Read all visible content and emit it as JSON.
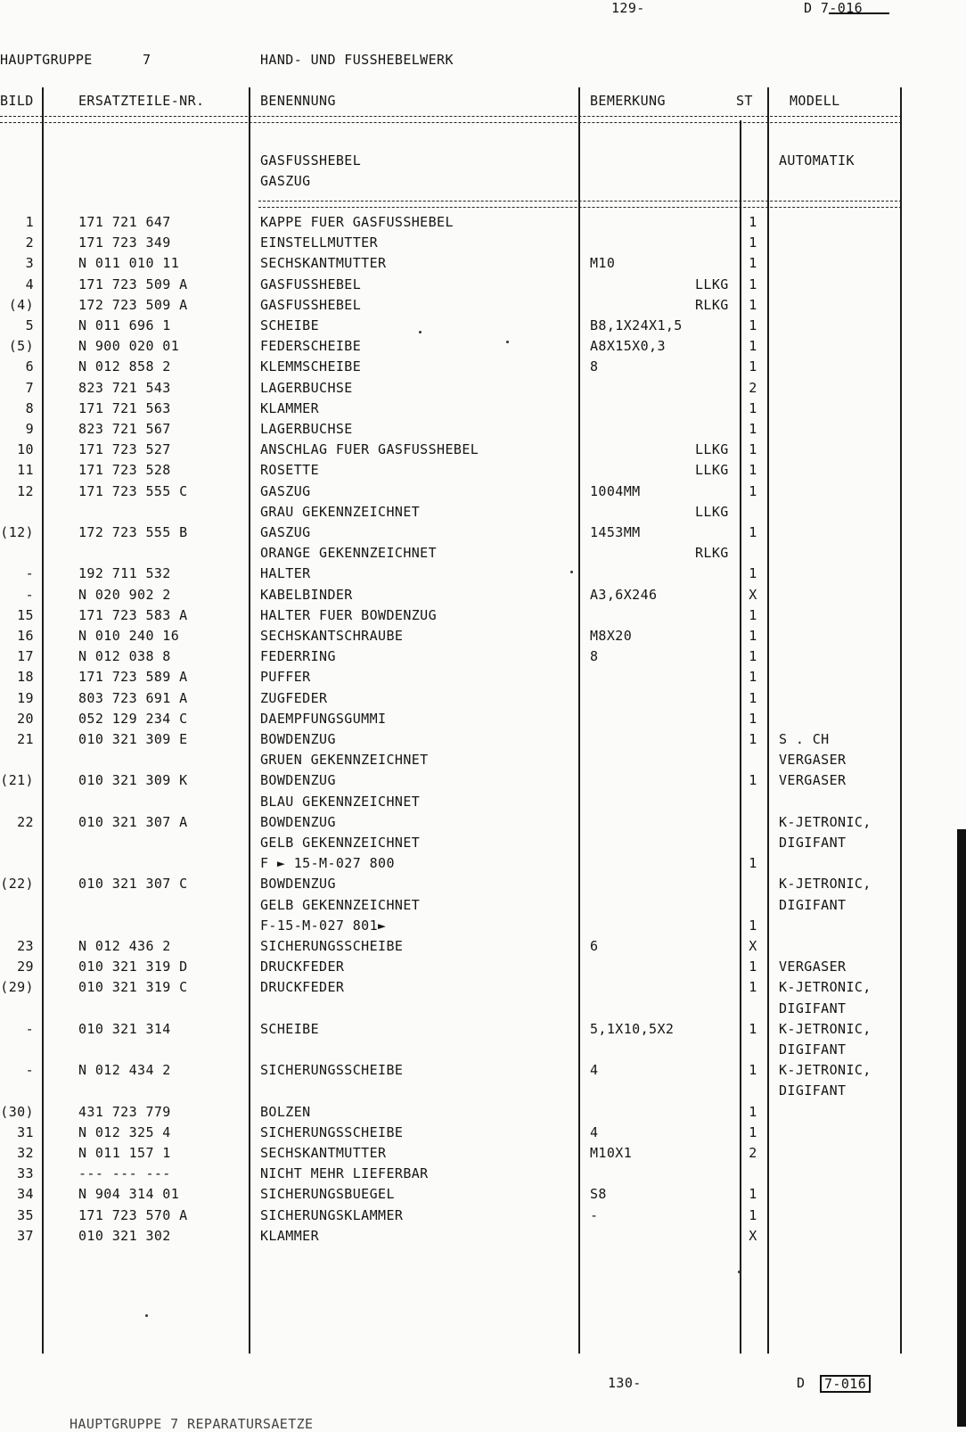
{
  "page": {
    "top_number": "129-",
    "top_ref": "D 7-016",
    "header_group_label": "HAUPTGRUPPE",
    "header_group_no": "7",
    "header_group_title": "HAND- UND FUSSHEBELWERK",
    "footer_page": "130-",
    "footer_prefix": "D",
    "footer_ref": "7-016",
    "next_section": "HAUPTGRUPPE 7    REPARATURSAETZE"
  },
  "columns": {
    "bild": "BILD",
    "part_no": "ERSATZTEILE-NR.",
    "name": "BENENNUNG",
    "remark": "BEMERKUNG",
    "qty": "ST",
    "model": "MODELL"
  },
  "intro": {
    "line1": "GASFUSSHEBEL",
    "line2": "GASZUG",
    "model": "AUTOMATIK"
  },
  "rows": [
    {
      "bild": "1",
      "part": "171 721 647",
      "name": "KAPPE FUER GASFUSSHEBEL",
      "remark": "",
      "lhd": "",
      "qty": "1",
      "model": ""
    },
    {
      "bild": "2",
      "part": "171 723 349",
      "name": "EINSTELLMUTTER",
      "remark": "",
      "lhd": "",
      "qty": "1",
      "model": ""
    },
    {
      "bild": "3",
      "part": "N   011 010 11",
      "name": "SECHSKANTMUTTER",
      "remark": "M10",
      "lhd": "",
      "qty": "1",
      "model": ""
    },
    {
      "bild": "4",
      "part": "171 723 509 A",
      "name": "GASFUSSHEBEL",
      "remark": "",
      "lhd": "LLKG",
      "qty": "1",
      "model": ""
    },
    {
      "bild": "(4)",
      "part": "172 723 509 A",
      "name": "GASFUSSHEBEL",
      "remark": "",
      "lhd": "RLKG",
      "qty": "1",
      "model": ""
    },
    {
      "bild": "5",
      "part": "N   011 696 1",
      "name": "SCHEIBE",
      "remark": "B8,1X24X1,5",
      "lhd": "",
      "qty": "1",
      "model": ""
    },
    {
      "bild": "(5)",
      "part": "N   900 020 01",
      "name": "FEDERSCHEIBE",
      "remark": "A8X15X0,3",
      "lhd": "",
      "qty": "1",
      "model": ""
    },
    {
      "bild": "6",
      "part": "N   012 858 2",
      "name": "KLEMMSCHEIBE",
      "remark": "8",
      "lhd": "",
      "qty": "1",
      "model": ""
    },
    {
      "bild": "7",
      "part": "823 721 543",
      "name": "LAGERBUCHSE",
      "remark": "",
      "lhd": "",
      "qty": "2",
      "model": ""
    },
    {
      "bild": "8",
      "part": "171 721 563",
      "name": "KLAMMER",
      "remark": "",
      "lhd": "",
      "qty": "1",
      "model": ""
    },
    {
      "bild": "9",
      "part": "823 721 567",
      "name": "LAGERBUCHSE",
      "remark": "",
      "lhd": "",
      "qty": "1",
      "model": ""
    },
    {
      "bild": "10",
      "part": "171 723 527",
      "name": "ANSCHLAG FUER GASFUSSHEBEL",
      "remark": "",
      "lhd": "LLKG",
      "qty": "1",
      "model": ""
    },
    {
      "bild": "11",
      "part": "171 723 528",
      "name": "ROSETTE",
      "remark": "",
      "lhd": "LLKG",
      "qty": "1",
      "model": ""
    },
    {
      "bild": "12",
      "part": "171 723 555 C",
      "name": "GASZUG",
      "remark": "1004MM",
      "lhd": "",
      "qty": "1",
      "model": ""
    },
    {
      "bild": "",
      "part": "",
      "name": "GRAU GEKENNZEICHNET",
      "remark": "",
      "lhd": "LLKG",
      "qty": "",
      "model": ""
    },
    {
      "bild": "(12)",
      "part": "172 723 555 B",
      "name": "GASZUG",
      "remark": "1453MM",
      "lhd": "",
      "qty": "1",
      "model": ""
    },
    {
      "bild": "",
      "part": "",
      "name": "ORANGE GEKENNZEICHNET",
      "remark": "",
      "lhd": "RLKG",
      "qty": "",
      "model": ""
    },
    {
      "bild": "-",
      "part": "192 711 532",
      "name": "HALTER",
      "remark": "",
      "lhd": "",
      "qty": "1",
      "model": ""
    },
    {
      "bild": "-",
      "part": "N   020 902 2",
      "name": "KABELBINDER",
      "remark": "A3,6X246",
      "lhd": "",
      "qty": "X",
      "model": ""
    },
    {
      "bild": "15",
      "part": "171 723 583 A",
      "name": "HALTER FUER BOWDENZUG",
      "remark": "",
      "lhd": "",
      "qty": "1",
      "model": ""
    },
    {
      "bild": "16",
      "part": "N   010 240 16",
      "name": "SECHSKANTSCHRAUBE",
      "remark": "M8X20",
      "lhd": "",
      "qty": "1",
      "model": ""
    },
    {
      "bild": "17",
      "part": "N   012 038 8",
      "name": "FEDERRING",
      "remark": "8",
      "lhd": "",
      "qty": "1",
      "model": ""
    },
    {
      "bild": "18",
      "part": "171 723 589 A",
      "name": "PUFFER",
      "remark": "",
      "lhd": "",
      "qty": "1",
      "model": ""
    },
    {
      "bild": "19",
      "part": "803 723 691 A",
      "name": "ZUGFEDER",
      "remark": "",
      "lhd": "",
      "qty": "1",
      "model": ""
    },
    {
      "bild": "20",
      "part": "052 129 234 C",
      "name": "DAEMPFUNGSGUMMI",
      "remark": "",
      "lhd": "",
      "qty": "1",
      "model": ""
    },
    {
      "bild": "21",
      "part": "010 321 309 E",
      "name": "BOWDENZUG",
      "remark": "",
      "lhd": "",
      "qty": "1",
      "model": "S . CH"
    },
    {
      "bild": "",
      "part": "",
      "name": "GRUEN GEKENNZEICHNET",
      "remark": "",
      "lhd": "",
      "qty": "",
      "model": "VERGASER"
    },
    {
      "bild": "(21)",
      "part": "010 321 309 K",
      "name": "BOWDENZUG",
      "remark": "",
      "lhd": "",
      "qty": "1",
      "model": "VERGASER"
    },
    {
      "bild": "",
      "part": "",
      "name": "BLAU GEKENNZEICHNET",
      "remark": "",
      "lhd": "",
      "qty": "",
      "model": ""
    },
    {
      "bild": "22",
      "part": "010 321 307 A",
      "name": "BOWDENZUG",
      "remark": "",
      "lhd": "",
      "qty": "",
      "model": "K-JETRONIC,"
    },
    {
      "bild": "",
      "part": "",
      "name": "GELB GEKENNZEICHNET",
      "remark": "",
      "lhd": "",
      "qty": "",
      "model": "DIGIFANT"
    },
    {
      "bild": "",
      "part": "",
      "name": "F           ► 15-M-027 800",
      "remark": "",
      "lhd": "",
      "qty": "1",
      "model": ""
    },
    {
      "bild": "(22)",
      "part": "010 321 307 C",
      "name": "BOWDENZUG",
      "remark": "",
      "lhd": "",
      "qty": "",
      "model": "K-JETRONIC,"
    },
    {
      "bild": "",
      "part": "",
      "name": "GELB GEKENNZEICHNET",
      "remark": "",
      "lhd": "",
      "qty": "",
      "model": "DIGIFANT"
    },
    {
      "bild": "",
      "part": "",
      "name": "F-15-M-027 801►",
      "remark": "",
      "lhd": "",
      "qty": "1",
      "model": ""
    },
    {
      "bild": "23",
      "part": "N   012 436 2",
      "name": "SICHERUNGSSCHEIBE",
      "remark": "6",
      "lhd": "",
      "qty": "X",
      "model": ""
    },
    {
      "bild": "29",
      "part": "010 321 319 D",
      "name": "DRUCKFEDER",
      "remark": "",
      "lhd": "",
      "qty": "1",
      "model": "VERGASER"
    },
    {
      "bild": "(29)",
      "part": "010 321 319 C",
      "name": "DRUCKFEDER",
      "remark": "",
      "lhd": "",
      "qty": "1",
      "model": "K-JETRONIC,"
    },
    {
      "bild": "",
      "part": "",
      "name": "",
      "remark": "",
      "lhd": "",
      "qty": "",
      "model": "DIGIFANT"
    },
    {
      "bild": "-",
      "part": "010 321 314",
      "name": "SCHEIBE",
      "remark": "5,1X10,5X2",
      "lhd": "",
      "qty": "1",
      "model": "K-JETRONIC,"
    },
    {
      "bild": "",
      "part": "",
      "name": "",
      "remark": "",
      "lhd": "",
      "qty": "",
      "model": "DIGIFANT"
    },
    {
      "bild": "-",
      "part": "N   012 434 2",
      "name": "SICHERUNGSSCHEIBE",
      "remark": "4",
      "lhd": "",
      "qty": "1",
      "model": "K-JETRONIC,"
    },
    {
      "bild": "",
      "part": "",
      "name": "",
      "remark": "",
      "lhd": "",
      "qty": "",
      "model": "DIGIFANT"
    },
    {
      "bild": "(30)",
      "part": "431 723 779",
      "name": "BOLZEN",
      "remark": "",
      "lhd": "",
      "qty": "1",
      "model": ""
    },
    {
      "bild": "31",
      "part": "N   012 325 4",
      "name": "SICHERUNGSSCHEIBE",
      "remark": "4",
      "lhd": "",
      "qty": "1",
      "model": ""
    },
    {
      "bild": "32",
      "part": "N   011 157 1",
      "name": "SECHSKANTMUTTER",
      "remark": "M10X1",
      "lhd": "",
      "qty": "2",
      "model": ""
    },
    {
      "bild": "33",
      "part": "--- --- ---",
      "name": "NICHT MEHR LIEFERBAR",
      "remark": "",
      "lhd": "",
      "qty": "",
      "model": ""
    },
    {
      "bild": "34",
      "part": "N   904 314 01",
      "name": "SICHERUNGSBUEGEL",
      "remark": "S8",
      "lhd": "",
      "qty": "1",
      "model": ""
    },
    {
      "bild": "35",
      "part": "171 723 570 A",
      "name": "SICHERUNGSKLAMMER",
      "remark": "-",
      "lhd": "",
      "qty": "1",
      "model": ""
    },
    {
      "bild": "37",
      "part": "010 321 302",
      "name": "KLAMMER",
      "remark": "",
      "lhd": "",
      "qty": "X",
      "model": ""
    }
  ]
}
